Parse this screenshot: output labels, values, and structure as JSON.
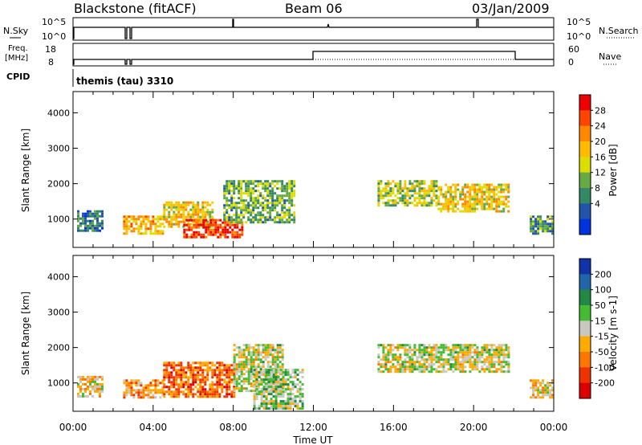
{
  "header": {
    "station": "Blackstone (fitACF)",
    "beam": "Beam 06",
    "date": "03/Jan/2009"
  },
  "top_panel": {
    "nsky_label": "N.Sky",
    "nsky_ticks": [
      "10^5",
      "10^0"
    ],
    "nsearch_label": "N.Search",
    "nsearch_ticks": [
      "10^5",
      "10^0"
    ],
    "freq_label": "Freq.",
    "freq_unit": "[MHz]",
    "freq_ticks": [
      "18",
      "8"
    ],
    "nave_label": "Nave",
    "nave_ticks": [
      "60",
      "0"
    ],
    "cpid_label": "CPID",
    "cpid_value": "themis (tau) 3310"
  },
  "axes": {
    "ylabel": "Slant Range [km]",
    "yticks": [
      "4000",
      "3000",
      "2000",
      "1000"
    ],
    "xticks": [
      "00:00",
      "04:00",
      "08:00",
      "12:00",
      "16:00",
      "20:00",
      "00:00"
    ],
    "xlabel": "Time UT"
  },
  "power_bar": {
    "label": "Power [dB]",
    "ticks": [
      "28",
      "24",
      "20",
      "16",
      "12",
      "8",
      "4"
    ],
    "colors": [
      "#ee0000",
      "#ff4400",
      "#ff8800",
      "#ffbb00",
      "#dddd00",
      "#66aa44",
      "#338866",
      "#2255aa",
      "#0033dd"
    ]
  },
  "velocity_bar": {
    "label": "Velocity [m s-1]",
    "ticks": [
      "200",
      "100",
      "50",
      "15",
      "-15",
      "-50",
      "-100",
      "-200"
    ],
    "colors": [
      "#1133aa",
      "#2266aa",
      "#228844",
      "#44bb33",
      "#c8c8c0",
      "#ffaa00",
      "#ff7700",
      "#ee3300",
      "#dd0000"
    ]
  },
  "chart_data": [
    {
      "type": "heatmap",
      "title": "Power [dB]",
      "xlabel": "Time UT",
      "ylabel": "Slant Range [km]",
      "xlim": [
        0,
        24
      ],
      "ylim": [
        200,
        4600
      ],
      "colorbar_range": [
        0,
        32
      ],
      "regions": [
        {
          "t": [
            0.2,
            1.5
          ],
          "r": [
            700,
            1250
          ],
          "value": 8
        },
        {
          "t": [
            2.5,
            4.5
          ],
          "r": [
            600,
            1100
          ],
          "value": 20
        },
        {
          "t": [
            4.5,
            7.0
          ],
          "r": [
            800,
            1500
          ],
          "value": 18
        },
        {
          "t": [
            5.5,
            8.5
          ],
          "r": [
            500,
            1000
          ],
          "value": 28
        },
        {
          "t": [
            7.5,
            11.0
          ],
          "r": [
            900,
            2100
          ],
          "value": 12
        },
        {
          "t": [
            15.2,
            18.2
          ],
          "r": [
            1400,
            2100
          ],
          "value": 14
        },
        {
          "t": [
            18.2,
            21.8
          ],
          "r": [
            1200,
            2000
          ],
          "value": 18
        },
        {
          "t": [
            22.8,
            23.9
          ],
          "r": [
            600,
            1100
          ],
          "value": 10
        }
      ]
    },
    {
      "type": "heatmap",
      "title": "Velocity [m s-1]",
      "xlabel": "Time UT",
      "ylabel": "Slant Range [km]",
      "xlim": [
        0,
        24
      ],
      "ylim": [
        200,
        4600
      ],
      "colorbar_range": [
        -250,
        250
      ],
      "regions": [
        {
          "t": [
            0.2,
            1.5
          ],
          "r": [
            600,
            1200
          ],
          "value": -40
        },
        {
          "t": [
            2.5,
            4.5
          ],
          "r": [
            600,
            1100
          ],
          "value": -80
        },
        {
          "t": [
            4.5,
            8.0
          ],
          "r": [
            600,
            1600
          ],
          "value": -120
        },
        {
          "t": [
            8.0,
            10.5
          ],
          "r": [
            800,
            2100
          ],
          "value": 0
        },
        {
          "t": [
            9.0,
            11.5
          ],
          "r": [
            300,
            1400
          ],
          "value": 30
        },
        {
          "t": [
            15.2,
            21.8
          ],
          "r": [
            1300,
            2100
          ],
          "value": 0
        },
        {
          "t": [
            22.8,
            23.9
          ],
          "r": [
            600,
            1100
          ],
          "value": -40
        }
      ]
    }
  ]
}
